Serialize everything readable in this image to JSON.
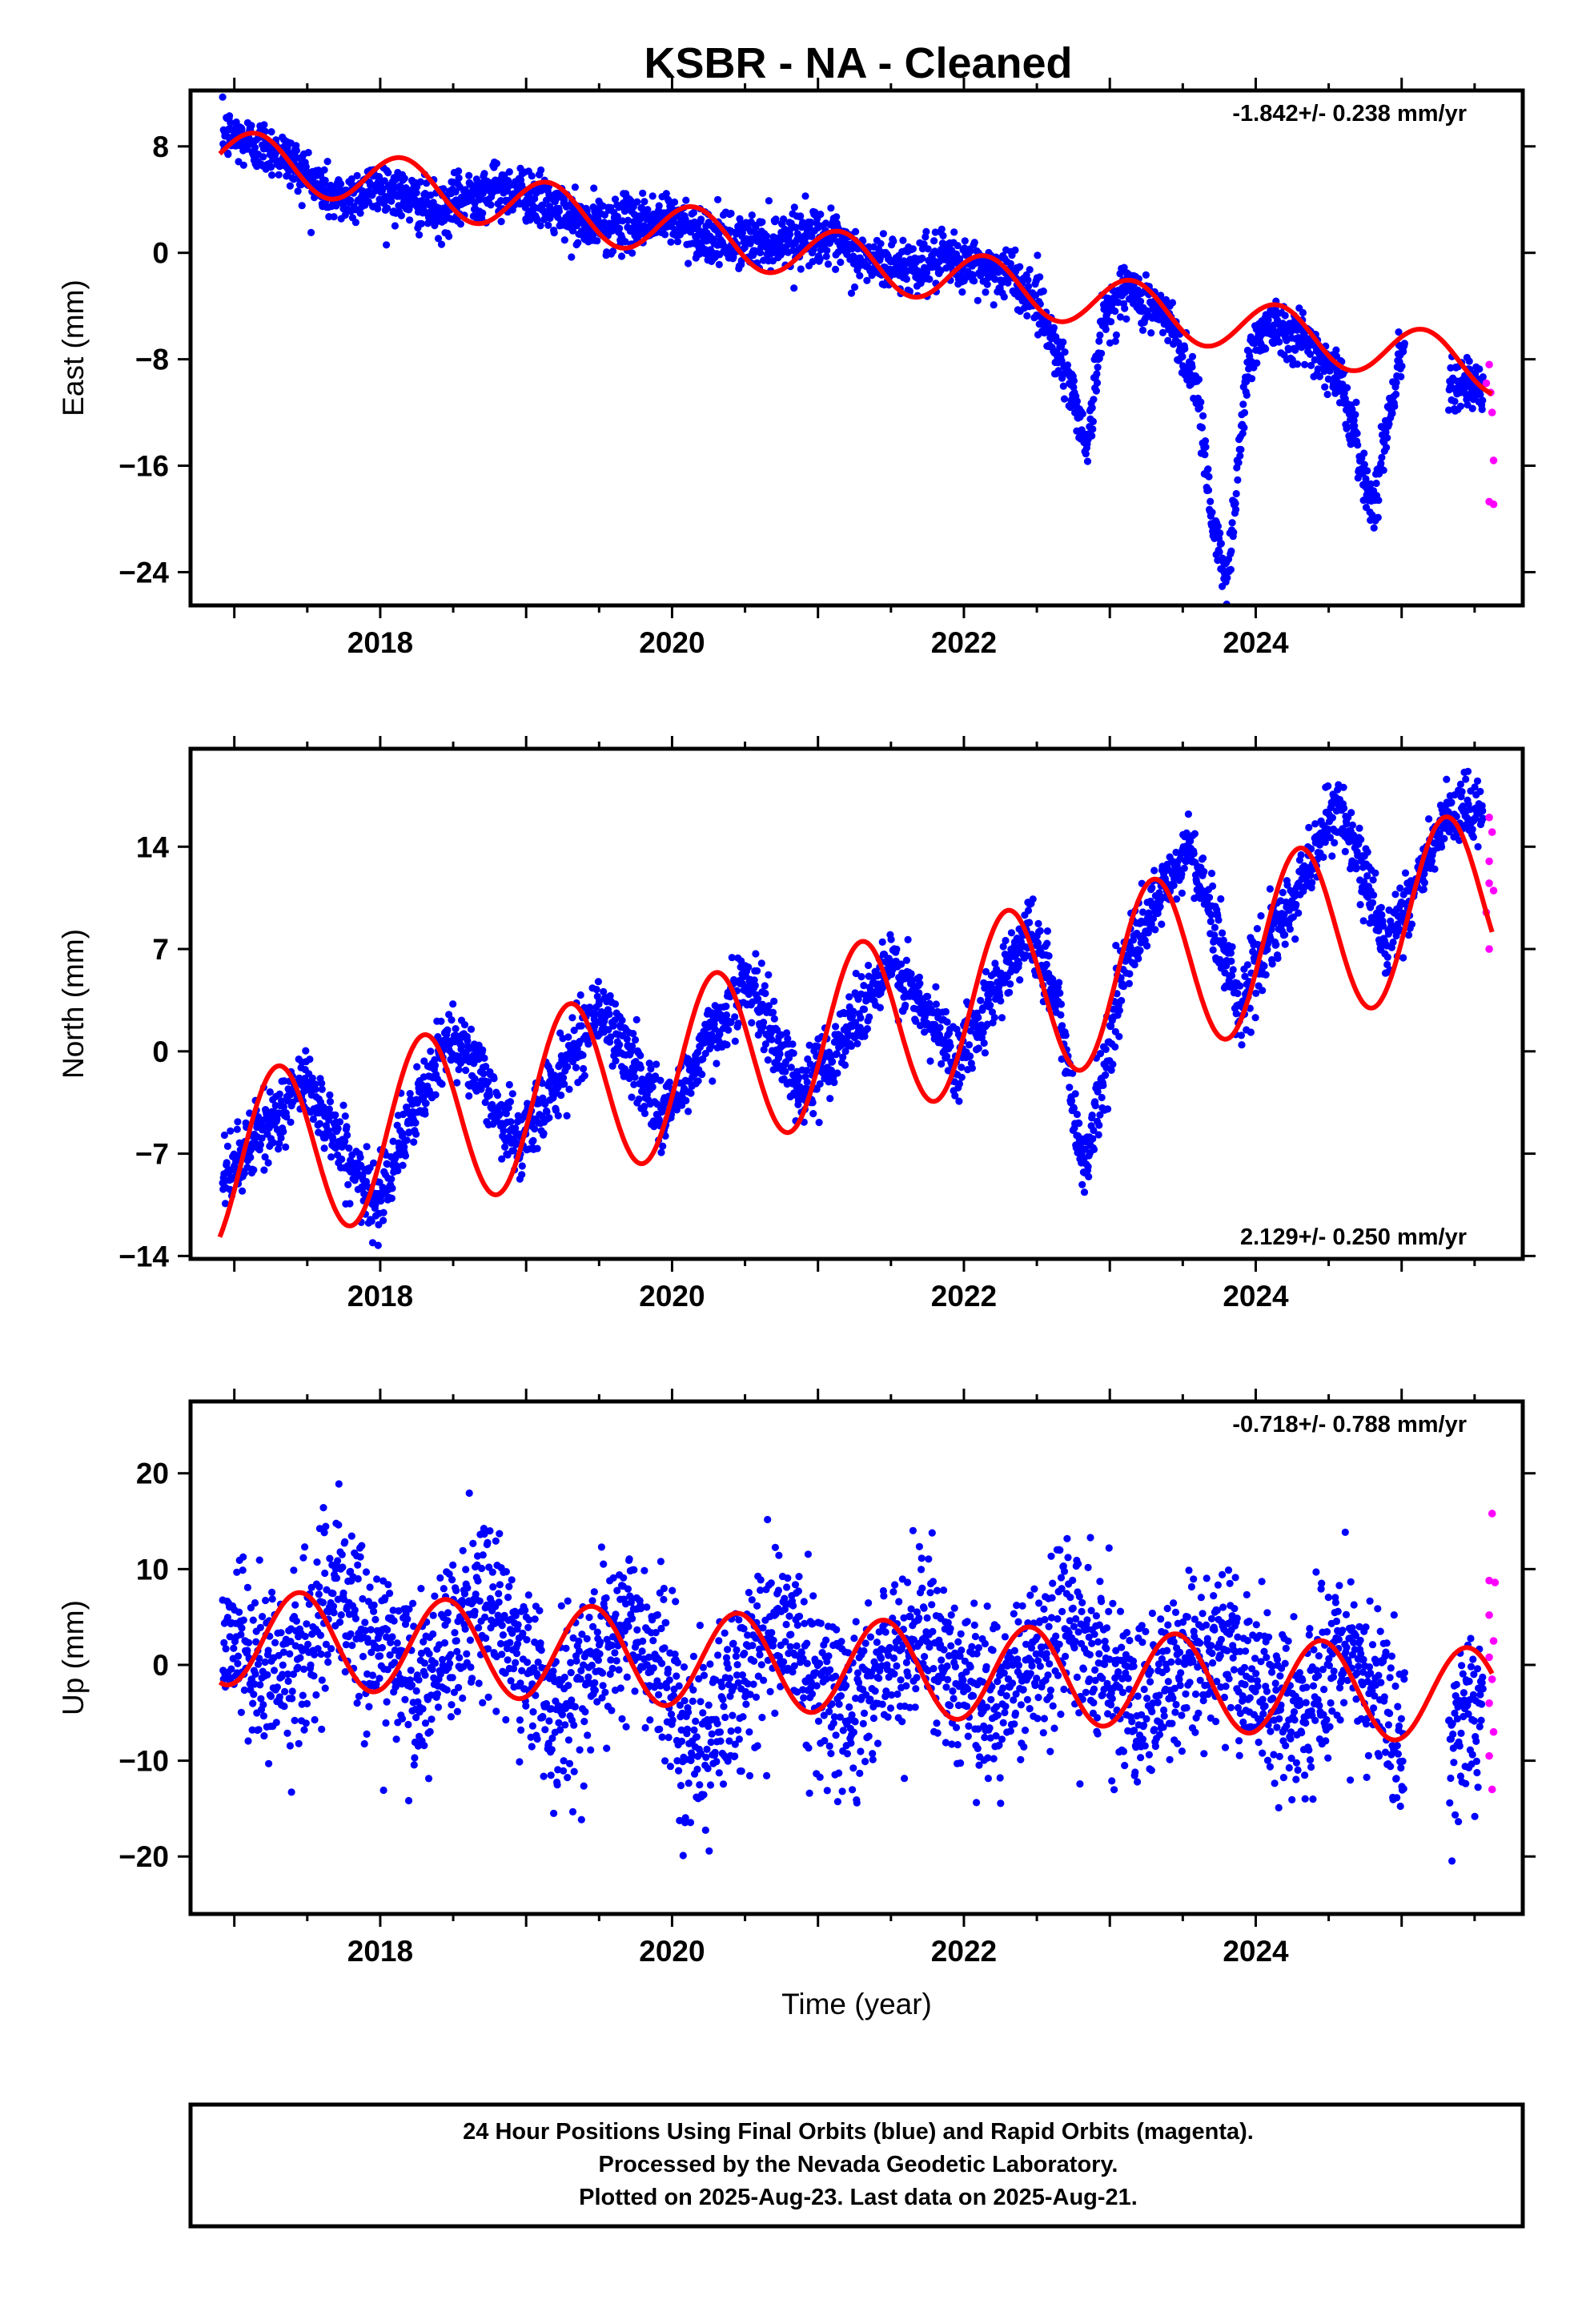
{
  "title": "KSBR  - NA - Cleaned",
  "colors": {
    "final": "#0000ff",
    "rapid": "#ff00ff",
    "fit": "#ff0000",
    "axis": "#000000"
  },
  "chart_data": [
    {
      "type": "scatter",
      "name": "east",
      "ylabel": "East (mm)",
      "xlabel": "",
      "rate_label": "-1.842+/- 0.238 mm/yr",
      "rate_position": "top-right",
      "xlim": [
        2016.7,
        2025.83
      ],
      "ylim": [
        -26.5,
        12.2
      ],
      "yticks": [
        8,
        0,
        -8,
        -16,
        -24
      ],
      "ytick_labels": [
        "8",
        "0",
        "−8",
        "−16",
        "−24"
      ],
      "xticks": [
        2018,
        2020,
        2022,
        2024
      ],
      "xtick_labels": [
        "2018",
        "2020",
        "2022",
        "2024"
      ],
      "trend": {
        "slope": -1.842,
        "intercept": 6.7,
        "ref_year": 2017.3
      },
      "anchors": [
        [
          2016.9,
          9.0
        ],
        [
          2017.3,
          7.6
        ],
        [
          2017.7,
          4.0
        ],
        [
          2018.0,
          5.0
        ],
        [
          2018.4,
          3.0
        ],
        [
          2018.7,
          4.8
        ],
        [
          2019.0,
          4.5
        ],
        [
          2019.4,
          2.0
        ],
        [
          2019.7,
          2.3
        ],
        [
          2020.0,
          2.5
        ],
        [
          2020.3,
          1.0
        ],
        [
          2020.6,
          0.8
        ],
        [
          2021.0,
          1.5
        ],
        [
          2021.3,
          -0.5
        ],
        [
          2021.6,
          -1.0
        ],
        [
          2021.9,
          -0.6
        ],
        [
          2022.3,
          -1.5
        ],
        [
          2022.5,
          -3.5
        ],
        [
          2022.7,
          -9.0
        ],
        [
          2022.85,
          -14.5
        ],
        [
          2022.95,
          -5.0
        ],
        [
          2023.1,
          -2.5
        ],
        [
          2023.4,
          -5.0
        ],
        [
          2023.6,
          -10.0
        ],
        [
          2023.7,
          -20.0
        ],
        [
          2023.8,
          -25.0
        ],
        [
          2023.95,
          -8.0
        ],
        [
          2024.1,
          -5.0
        ],
        [
          2024.4,
          -7.0
        ],
        [
          2024.6,
          -10.0
        ],
        [
          2024.7,
          -15.0
        ],
        [
          2024.8,
          -19.0
        ],
        [
          2024.95,
          -10.0
        ],
        [
          2025.0,
          -7.5
        ],
        [
          2025.3,
          -9.0
        ],
        [
          2025.6,
          -11.0
        ]
      ],
      "noise": 1.0,
      "seasonal": {
        "amp": 2.0,
        "phase": 2017.15
      },
      "rapid": [
        [
          2025.58,
          -9.8
        ],
        [
          2025.6,
          -8.4
        ],
        [
          2025.61,
          -10.5
        ],
        [
          2025.62,
          -12.0
        ],
        [
          2025.63,
          -15.6
        ],
        [
          2025.6,
          -18.7
        ],
        [
          2025.63,
          -18.9
        ]
      ]
    },
    {
      "type": "scatter",
      "name": "north",
      "ylabel": "North (mm)",
      "xlabel": "",
      "rate_label": "2.129+/- 0.250 mm/yr",
      "rate_position": "bottom-right",
      "xlim": [
        2016.7,
        2025.83
      ],
      "ylim": [
        -14.2,
        20.7
      ],
      "yticks": [
        14,
        7,
        0,
        -7,
        -14
      ],
      "ytick_labels": [
        "14",
        "7",
        "0",
        "−7",
        "−14"
      ],
      "xticks": [
        2018,
        2020,
        2022,
        2024
      ],
      "xtick_labels": [
        "2018",
        "2020",
        "2022",
        "2024"
      ],
      "trend": {
        "slope": 2.129,
        "intercept": -7.0,
        "ref_year": 2017.3
      },
      "anchors": [
        [
          2016.9,
          -9.0
        ],
        [
          2017.5,
          -2.0
        ],
        [
          2017.95,
          -10.5
        ],
        [
          2018.5,
          1.5
        ],
        [
          2018.95,
          -6.5
        ],
        [
          2019.5,
          3.0
        ],
        [
          2019.95,
          -4.5
        ],
        [
          2020.5,
          5.0
        ],
        [
          2020.9,
          -3.0
        ],
        [
          2021.5,
          6.0
        ],
        [
          2021.95,
          -0.5
        ],
        [
          2022.45,
          8.5
        ],
        [
          2022.65,
          3.0
        ],
        [
          2022.82,
          -8.0
        ],
        [
          2022.95,
          -2.0
        ],
        [
          2023.1,
          6.0
        ],
        [
          2023.55,
          14.0
        ],
        [
          2023.9,
          3.0
        ],
        [
          2024.0,
          6.0
        ],
        [
          2024.2,
          9.0
        ],
        [
          2024.55,
          17.0
        ],
        [
          2024.9,
          7.5
        ],
        [
          2025.3,
          15.5
        ],
        [
          2025.6,
          17.0
        ]
      ],
      "noise": 1.2,
      "seasonal": {
        "amp": 6.0,
        "phase": 2017.3
      },
      "rapid": [
        [
          2025.6,
          16.0
        ],
        [
          2025.62,
          15.0
        ],
        [
          2025.6,
          13.0
        ],
        [
          2025.63,
          11.0
        ],
        [
          2025.6,
          11.5
        ],
        [
          2025.58,
          9.5
        ],
        [
          2025.6,
          7.0
        ]
      ]
    },
    {
      "type": "scatter",
      "name": "up",
      "ylabel": "Up (mm)",
      "xlabel": "Time (year)",
      "rate_label": "-0.718+/- 0.788 mm/yr",
      "rate_position": "top-right",
      "xlim": [
        2016.7,
        2025.83
      ],
      "ylim": [
        -26.0,
        27.5
      ],
      "yticks": [
        20,
        10,
        0,
        -10,
        -20
      ],
      "ytick_labels": [
        "20",
        "10",
        "0",
        "−10",
        "−20"
      ],
      "xticks": [
        2018,
        2020,
        2022,
        2024
      ],
      "xtick_labels": [
        "2018",
        "2020",
        "2022",
        "2024"
      ],
      "trend": {
        "slope": -0.718,
        "intercept": 0.0,
        "ref_year": 2021.0
      },
      "anchors": [
        [
          2016.9,
          4.0
        ],
        [
          2017.3,
          -2.0
        ],
        [
          2017.7,
          7.0
        ],
        [
          2018.3,
          -3.0
        ],
        [
          2018.7,
          7.5
        ],
        [
          2019.2,
          -5.0
        ],
        [
          2019.7,
          5.0
        ],
        [
          2020.2,
          -9.0
        ],
        [
          2020.7,
          5.0
        ],
        [
          2021.2,
          -5.0
        ],
        [
          2021.7,
          4.0
        ],
        [
          2022.2,
          -5.0
        ],
        [
          2022.7,
          5.0
        ],
        [
          2023.2,
          -5.0
        ],
        [
          2023.7,
          3.0
        ],
        [
          2024.2,
          -6.0
        ],
        [
          2024.7,
          1.0
        ],
        [
          2025.0,
          -8.0
        ],
        [
          2025.3,
          -8.0
        ],
        [
          2025.6,
          -3.0
        ]
      ],
      "noise": 4.3,
      "seasonal": {
        "amp": 5.0,
        "phase": 2017.45
      },
      "rapid": [
        [
          2025.62,
          15.8
        ],
        [
          2025.6,
          8.8
        ],
        [
          2025.64,
          8.6
        ],
        [
          2025.6,
          5.2
        ],
        [
          2025.63,
          2.5
        ],
        [
          2025.6,
          0.8
        ],
        [
          2025.62,
          -1.5
        ],
        [
          2025.6,
          -4.0
        ],
        [
          2025.63,
          -7.0
        ],
        [
          2025.6,
          -9.5
        ],
        [
          2025.62,
          -13.0
        ]
      ]
    }
  ],
  "footer": {
    "line1": "24 Hour Positions Using Final Orbits (blue) and Rapid Orbits (magenta).",
    "line2": "Processed by the Nevada Geodetic Laboratory.",
    "line3": "Plotted on 2025-Aug-23. Last data on 2025-Aug-21."
  }
}
